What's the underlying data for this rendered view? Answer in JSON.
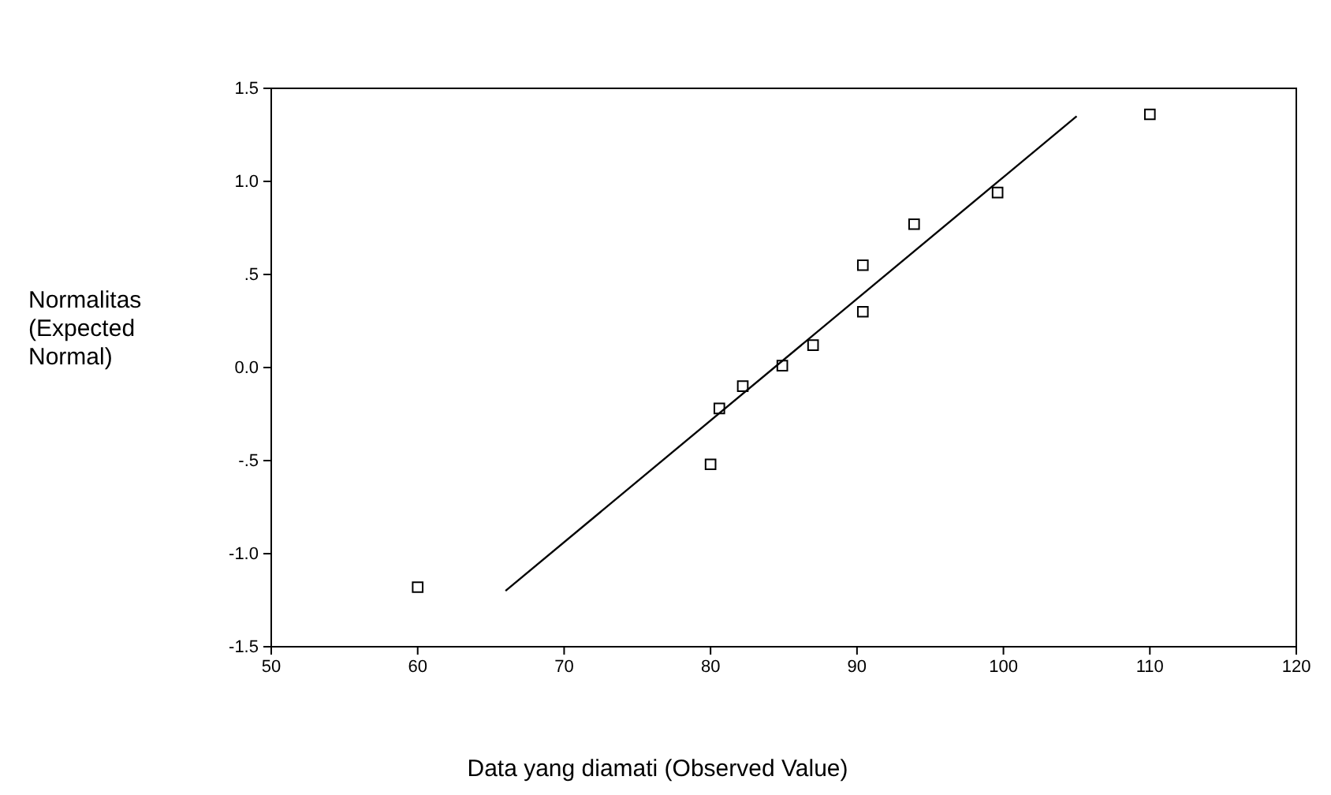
{
  "chart_data": {
    "type": "scatter",
    "xlabel": "Data yang diamati (Observed Value)",
    "ylabel": "Normalitas (Expected Normal)",
    "xlim": [
      50,
      120
    ],
    "xticks": [
      50,
      60,
      70,
      80,
      90,
      100,
      110,
      120
    ],
    "ylim": [
      -1.5,
      1.5
    ],
    "yticks": [
      {
        "value": -1.5,
        "label": "-1.5"
      },
      {
        "value": -1,
        "label": "-1.0"
      },
      {
        "value": -0.5,
        "label": "-.5"
      },
      {
        "value": 0,
        "label": "0.0"
      },
      {
        "value": 0.5,
        "label": ".5"
      },
      {
        "value": 1,
        "label": "1.0"
      },
      {
        "value": 1.5,
        "label": "1.5"
      }
    ],
    "grid": false,
    "marker": "square",
    "series": [
      {
        "color": "#000000",
        "x": [
          60,
          80,
          80.6,
          82.2,
          84.9,
          87,
          90.4,
          90.4,
          93.9,
          99.6,
          110
        ],
        "values": [
          -1.18,
          -0.52,
          -0.22,
          -0.1,
          0.01,
          0.12,
          0.3,
          0.55,
          0.77,
          0.94,
          1.36
        ]
      },
      {
        "type": "line",
        "color": "#000000",
        "line_style": "solid",
        "marker": "none",
        "x": [
          66,
          105
        ],
        "values": [
          -1.2,
          1.35
        ]
      }
    ]
  }
}
